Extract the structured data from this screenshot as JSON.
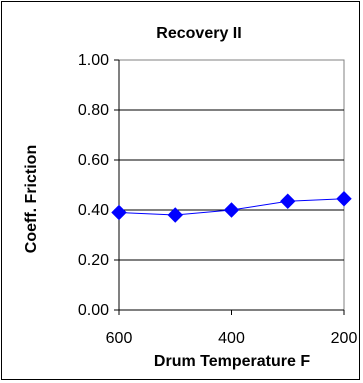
{
  "chart_data": {
    "type": "line",
    "title": "Recovery II",
    "xlabel": "Drum Temperature F",
    "ylabel": "Coeff. Friction",
    "x_reversed": true,
    "xlim": [
      600,
      200
    ],
    "ylim": [
      0,
      1
    ],
    "x_ticks": [
      "600",
      "400",
      "200"
    ],
    "y_ticks": [
      "0.00",
      "0.20",
      "0.40",
      "0.60",
      "0.80",
      "1.00"
    ],
    "x_tick_values": [
      600,
      400,
      200
    ],
    "y_tick_values": [
      0,
      0.2,
      0.4,
      0.6,
      0.8,
      1.0
    ],
    "grid": "horizontal",
    "legend": "none",
    "series": [
      {
        "color": "#0000ff",
        "marker": "diamond",
        "x": [
          600,
          500,
          400,
          300,
          200
        ],
        "values": [
          0.39,
          0.38,
          0.4,
          0.435,
          0.445
        ]
      }
    ]
  }
}
